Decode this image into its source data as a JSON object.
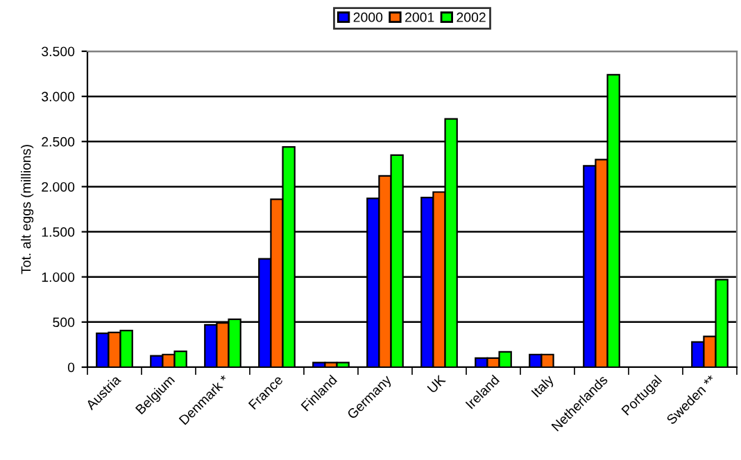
{
  "chart_data": {
    "type": "bar",
    "ylabel": "Tot. alt eggs (millions)",
    "categories": [
      "Austria",
      "Belgium",
      "Denmark *",
      "France",
      "Finland",
      "Germany",
      "UK",
      "Ireland",
      "Italy",
      "Netherlands",
      "Portugal",
      "Sweden **"
    ],
    "series": [
      {
        "name": "2000",
        "color": "#0000ff",
        "values": [
          375,
          125,
          470,
          1200,
          50,
          1870,
          1880,
          100,
          140,
          2230,
          null,
          280
        ]
      },
      {
        "name": "2001",
        "color": "#ff6600",
        "values": [
          385,
          140,
          490,
          1860,
          50,
          2120,
          1940,
          100,
          140,
          2300,
          null,
          340
        ]
      },
      {
        "name": "2002",
        "color": "#00ff00",
        "values": [
          405,
          175,
          530,
          2440,
          50,
          2350,
          2750,
          170,
          null,
          3240,
          null,
          970
        ]
      }
    ],
    "ylim": [
      0,
      3500
    ],
    "yticks": [
      {
        "value": 0,
        "label": "0"
      },
      {
        "value": 500,
        "label": "500"
      },
      {
        "value": 1000,
        "label": "1.000"
      },
      {
        "value": 1500,
        "label": "1.500"
      },
      {
        "value": 2000,
        "label": "2.000"
      },
      {
        "value": 2500,
        "label": "2.500"
      },
      {
        "value": 3000,
        "label": "3.000"
      },
      {
        "value": 3500,
        "label": "3.500"
      }
    ],
    "grid": "y",
    "legend": "top"
  }
}
